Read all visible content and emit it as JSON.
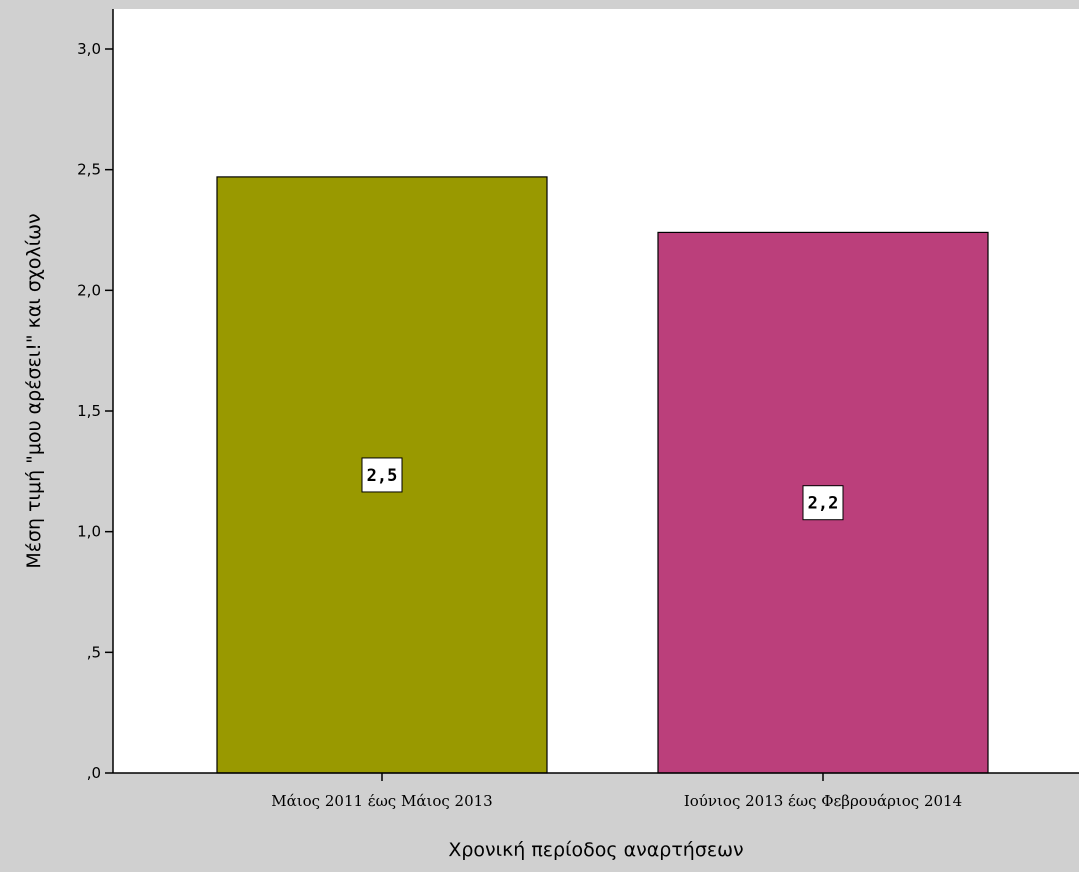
{
  "chart_data": {
    "type": "bar",
    "categories": [
      "Μάιος 2011 έως Μάιος 2013",
      "Ιούνιος 2013 έως Φεβρουάριος 2014"
    ],
    "values": [
      2.47,
      2.24
    ],
    "data_labels": [
      "2,5",
      "2,2"
    ],
    "colors": [
      "#999900",
      "#bb3f7b"
    ],
    "xlabel": "Χρονική περίοδος αναρτήσεων",
    "ylabel": "Μέση τιμή \"μου αρέσει!\" και σχολίων",
    "ylim": [
      0,
      3.0
    ],
    "yticks": [
      0,
      0.5,
      1.0,
      1.5,
      2.0,
      2.5,
      3.0
    ],
    "ytick_labels": [
      ",0",
      ",5",
      "1,0",
      "1,5",
      "2,0",
      "2,5",
      "3,0"
    ],
    "grid": false,
    "legend": "none",
    "plot_background": "#ffffff",
    "outer_background": "#d0d0d0"
  }
}
